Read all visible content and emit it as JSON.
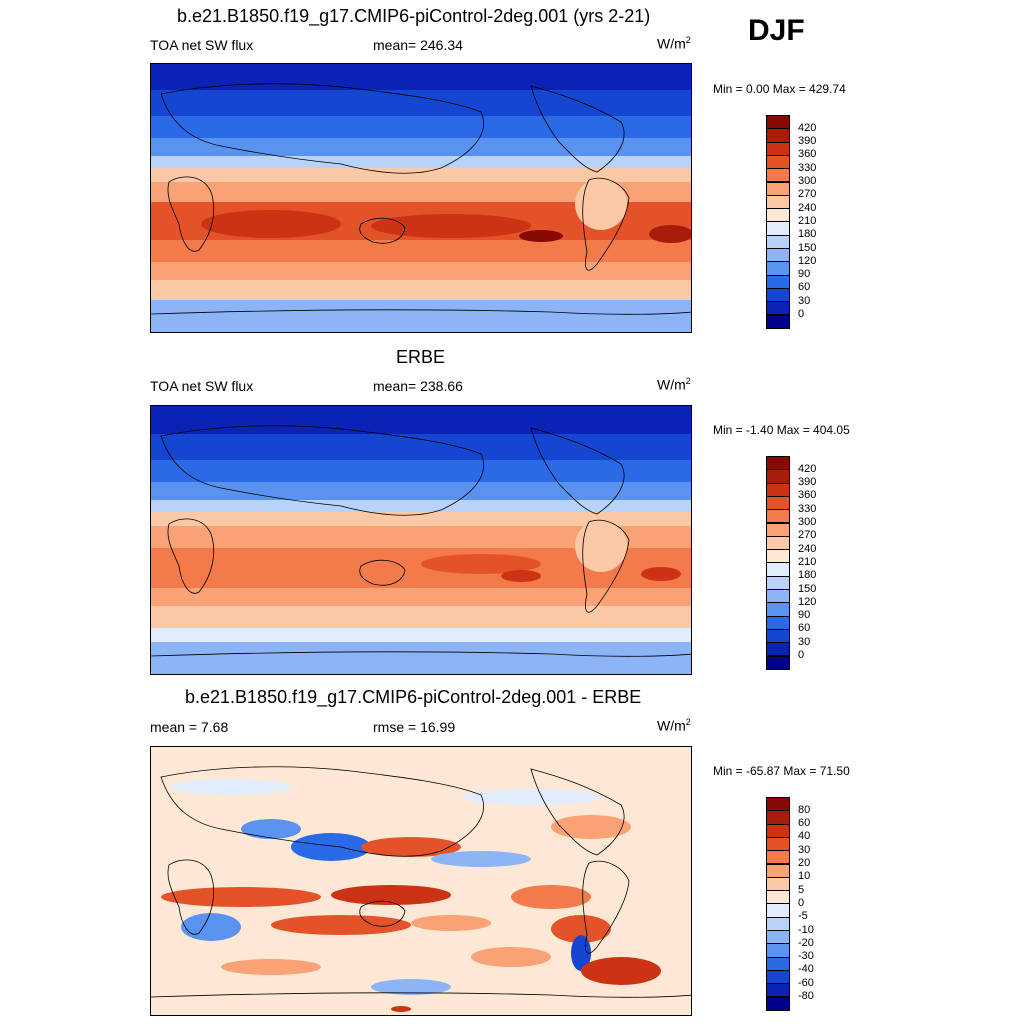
{
  "season": "DJF",
  "palettes": {
    "abs": [
      "#00008b",
      "#0a23b4",
      "#1446d2",
      "#2a6ae6",
      "#5a92f0",
      "#8cb4f6",
      "#b9d2fa",
      "#e1ecfc",
      "#fde8d6",
      "#fbc9a6",
      "#f8a276",
      "#f27a4b",
      "#e4522a",
      "#cc3214",
      "#a81d0a",
      "#870a05"
    ],
    "diff": [
      "#00008b",
      "#0a23b4",
      "#1446d2",
      "#2a6ae6",
      "#5a92f0",
      "#8cb4f6",
      "#b9d2fa",
      "#e1ecfc",
      "#fde8d6",
      "#fbc9a6",
      "#f8a276",
      "#f27a4b",
      "#e4522a",
      "#cc3214",
      "#a81d0a",
      "#870a05"
    ]
  },
  "panels": [
    {
      "title": "b.e21.B1850.f19_g17.CMIP6-piControl-2deg.001 (yrs 2-21)",
      "left_label": "TOA net SW flux",
      "center_label": "mean= 246.34",
      "units_base": "W/m",
      "units_exp": "2",
      "minmax": "Min =   0.00 Max = 429.74",
      "colorbar": {
        "type": "abs",
        "labels": [
          "420",
          "390",
          "360",
          "330",
          "300",
          "270",
          "240",
          "210",
          "180",
          "150",
          "120",
          "90",
          "60",
          "30",
          "0"
        ]
      }
    },
    {
      "title": "ERBE",
      "left_label": "TOA net SW flux",
      "center_label": "mean= 238.66",
      "units_base": "W/m",
      "units_exp": "2",
      "minmax": "Min =  -1.40 Max = 404.05",
      "colorbar": {
        "type": "abs",
        "labels": [
          "420",
          "390",
          "360",
          "330",
          "300",
          "270",
          "240",
          "210",
          "180",
          "150",
          "120",
          "90",
          "60",
          "30",
          "0"
        ]
      }
    },
    {
      "title": "b.e21.B1850.f19_g17.CMIP6-piControl-2deg.001 - ERBE",
      "left_label": "mean =   7.68",
      "center_label": "rmse =  16.99",
      "units_base": "W/m",
      "units_exp": "2",
      "minmax": "Min = -65.87 Max =  71.50",
      "colorbar": {
        "type": "diff",
        "labels": [
          "80",
          "60",
          "40",
          "30",
          "20",
          "10",
          "5",
          "0",
          "-5",
          "-10",
          "-20",
          "-30",
          "-40",
          "-60",
          "-80"
        ]
      }
    }
  ]
}
